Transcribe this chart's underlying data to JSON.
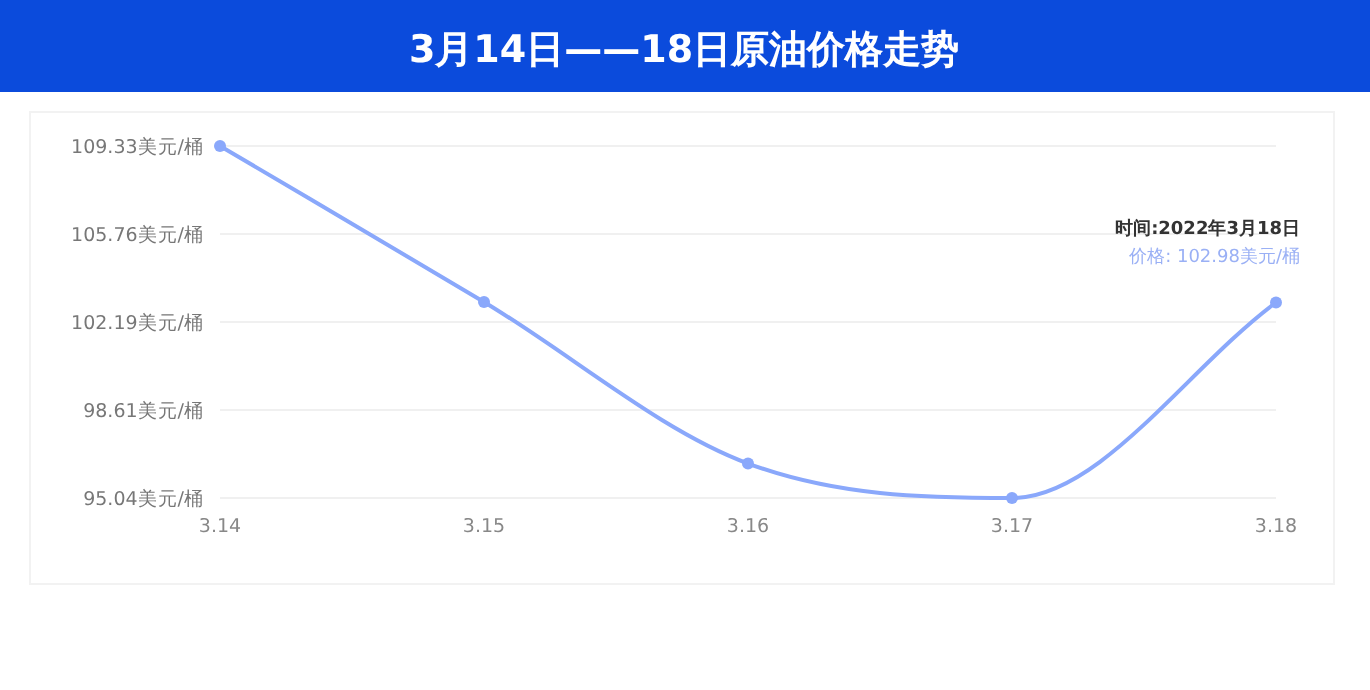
{
  "chart_data": {
    "type": "line",
    "title": "3月14日——18日原油价格走势",
    "categories": [
      "3.14",
      "3.15",
      "3.16",
      "3.17",
      "3.18"
    ],
    "series": [
      {
        "color": "#8aa8fb",
        "values": [
          109.33,
          103.0,
          96.44,
          95.04,
          102.98
        ]
      }
    ],
    "ylim": [
      95.04,
      109.33
    ],
    "yticks": [
      {
        "value": 95.04,
        "label": "95.04美元/桶"
      },
      {
        "value": 98.61,
        "label": "98.61美元/桶"
      },
      {
        "value": 102.19,
        "label": "102.19美元/桶"
      },
      {
        "value": 105.76,
        "label": "105.76美元/桶"
      },
      {
        "value": 109.33,
        "label": "109.33美元/桶"
      }
    ],
    "grid": "y",
    "marker": "circle",
    "annotations": [
      "时间:2022年3月18日",
      "价格: 102.98美元/桶"
    ]
  }
}
